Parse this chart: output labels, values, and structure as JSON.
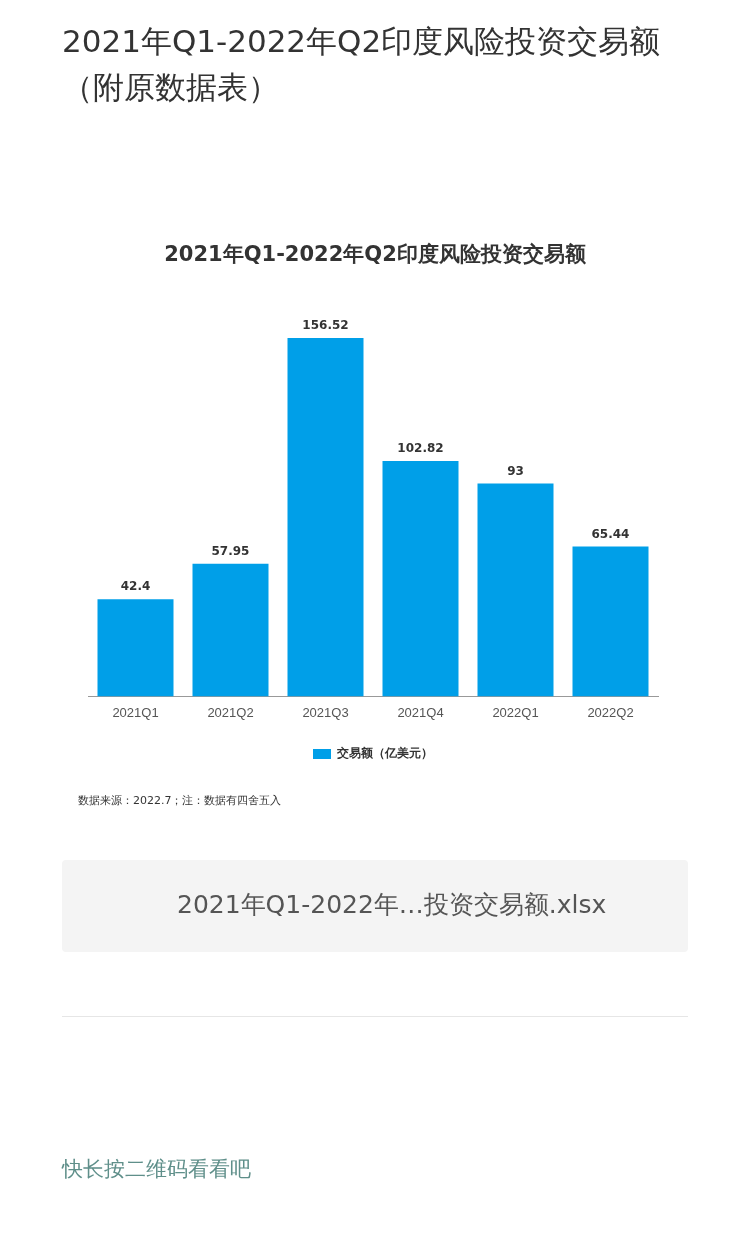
{
  "chart_data": {
    "type": "bar",
    "title": "2021年Q1-2022年Q2印度风险投资交易额（附原数据表）",
    "subtitle": "2021年Q1-2022年Q2印度风险投资交易额",
    "categories": [
      "2021Q1",
      "2021Q2",
      "2021Q3",
      "2021Q4",
      "2022Q1",
      "2022Q2"
    ],
    "series": [
      {
        "name": "交易额（亿美元）",
        "color": "#009fe8",
        "values": [
          42.4,
          57.95,
          156.52,
          102.82,
          93,
          65.44
        ]
      }
    ],
    "data_labels": true,
    "legend": "bottom",
    "grid": false,
    "annotations": [
      "数据来源：2022.7；注：数据有四舍五入",
      "2021年Q1-2022年…投资交易额.xlsx",
      "快长按二维码看看吧"
    ]
  }
}
